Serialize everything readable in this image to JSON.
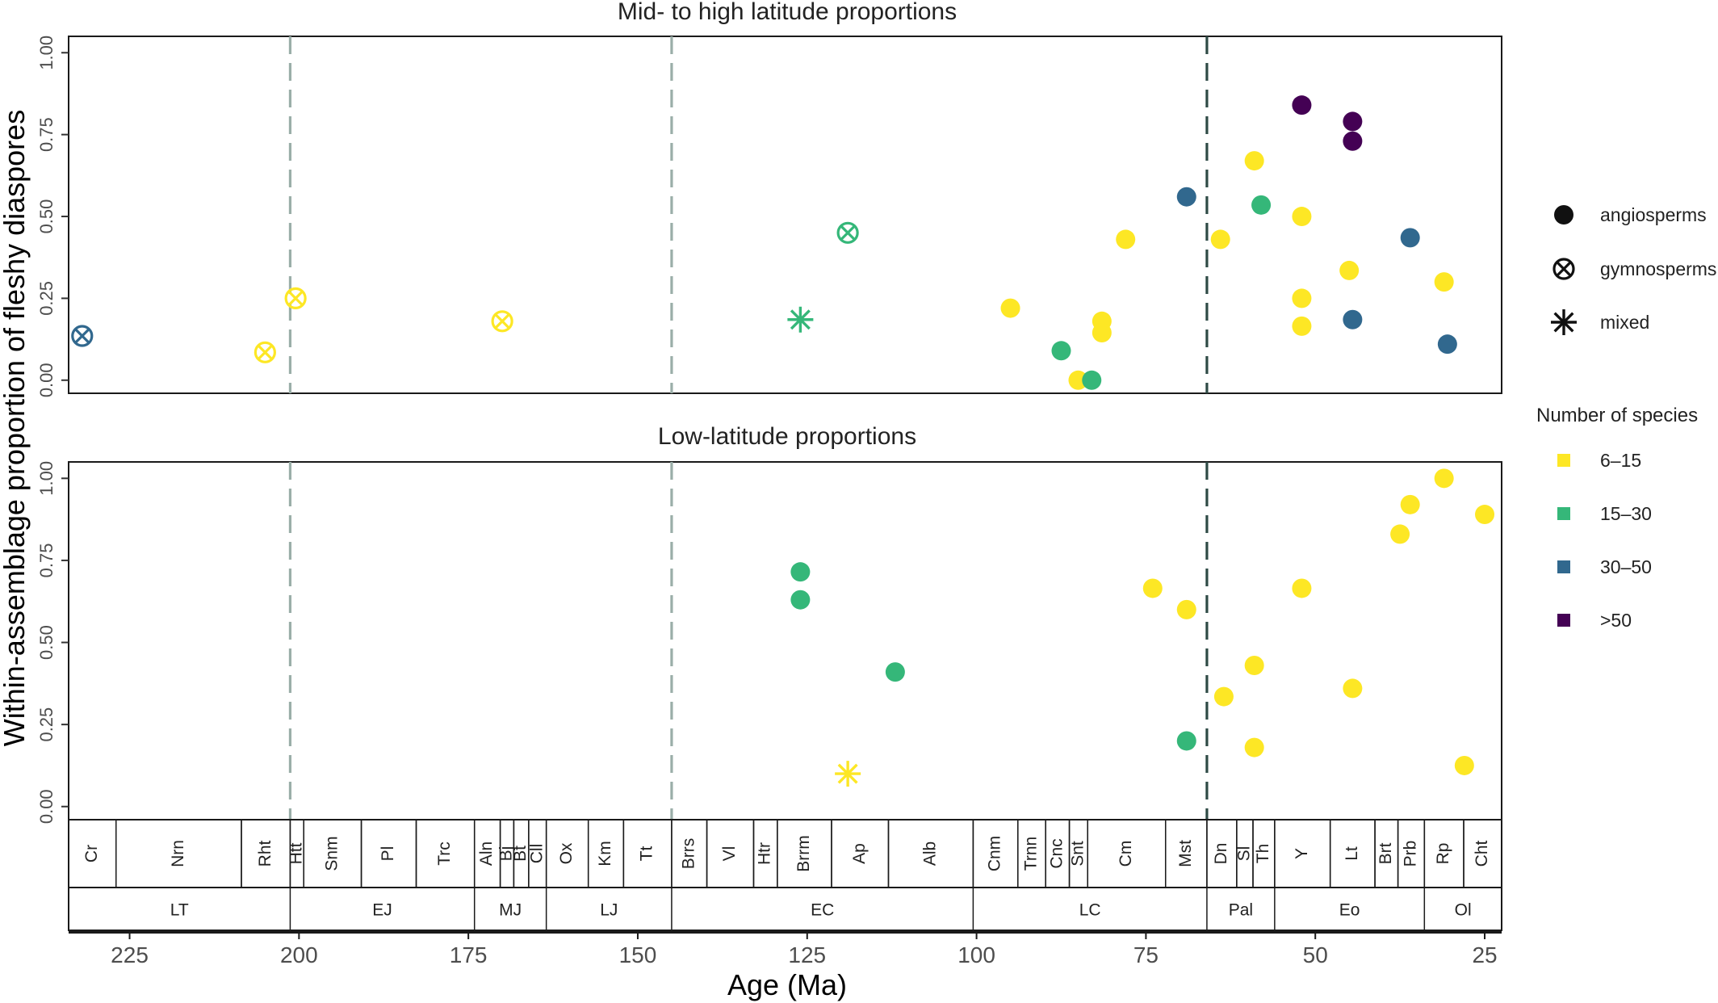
{
  "chart_data": {
    "type": "scatter",
    "xlabel": "Age (Ma)",
    "ylabel": "Within-assemblage proportion of fleshy diaspores",
    "xlim": [
      234,
      22.5
    ],
    "x_reversed": true,
    "x_ticks": [
      225,
      200,
      175,
      150,
      125,
      100,
      75,
      50,
      25
    ],
    "y_ticks": [
      0.0,
      0.25,
      0.5,
      0.75,
      1.0
    ],
    "y_tick_labels": [
      "0.00",
      "0.25",
      "0.50",
      "0.75",
      "1.00"
    ],
    "ylim": [
      -0.04,
      1.05
    ],
    "grid": false,
    "vlines": [
      {
        "x": 201.3,
        "color": "#9aaea8",
        "style": "dashed"
      },
      {
        "x": 145,
        "color": "#9aaea8",
        "style": "dashed"
      },
      {
        "x": 66,
        "color": "#2e4a45",
        "style": "dashed"
      }
    ],
    "species_colors": {
      "6–15": "#fde725",
      "15–30": "#35b779",
      "30–50": "#31688e",
      ">50": "#440154"
    },
    "panels": [
      {
        "title": "Mid- to high latitude proportions",
        "points": [
          {
            "x": 232,
            "y": 0.135,
            "marker": "gymnosperms",
            "species": "30–50"
          },
          {
            "x": 205,
            "y": 0.085,
            "marker": "gymnosperms",
            "species": "6–15"
          },
          {
            "x": 200.5,
            "y": 0.25,
            "marker": "gymnosperms",
            "species": "6–15"
          },
          {
            "x": 170,
            "y": 0.18,
            "marker": "gymnosperms",
            "species": "6–15"
          },
          {
            "x": 119,
            "y": 0.45,
            "marker": "gymnosperms",
            "species": "15–30"
          },
          {
            "x": 126,
            "y": 0.185,
            "marker": "mixed",
            "species": "15–30"
          },
          {
            "x": 95,
            "y": 0.22,
            "marker": "angiosperms",
            "species": "6–15"
          },
          {
            "x": 87.5,
            "y": 0.09,
            "marker": "angiosperms",
            "species": "15–30"
          },
          {
            "x": 85,
            "y": 0.0,
            "marker": "angiosperms",
            "species": "6–15"
          },
          {
            "x": 83,
            "y": 0.0,
            "marker": "angiosperms",
            "species": "15–30"
          },
          {
            "x": 81.5,
            "y": 0.18,
            "marker": "angiosperms",
            "species": "6–15"
          },
          {
            "x": 81.5,
            "y": 0.145,
            "marker": "angiosperms",
            "species": "6–15"
          },
          {
            "x": 78,
            "y": 0.43,
            "marker": "angiosperms",
            "species": "6–15"
          },
          {
            "x": 69,
            "y": 0.56,
            "marker": "angiosperms",
            "species": "30–50"
          },
          {
            "x": 64,
            "y": 0.43,
            "marker": "angiosperms",
            "species": "6–15"
          },
          {
            "x": 58,
            "y": 0.535,
            "marker": "angiosperms",
            "species": "15–30"
          },
          {
            "x": 59,
            "y": 0.67,
            "marker": "angiosperms",
            "species": "6–15"
          },
          {
            "x": 52,
            "y": 0.84,
            "marker": "angiosperms",
            "species": ">50"
          },
          {
            "x": 52,
            "y": 0.5,
            "marker": "angiosperms",
            "species": "6–15"
          },
          {
            "x": 52,
            "y": 0.25,
            "marker": "angiosperms",
            "species": "6–15"
          },
          {
            "x": 52,
            "y": 0.165,
            "marker": "angiosperms",
            "species": "6–15"
          },
          {
            "x": 44.5,
            "y": 0.79,
            "marker": "angiosperms",
            "species": ">50"
          },
          {
            "x": 44.5,
            "y": 0.73,
            "marker": "angiosperms",
            "species": ">50"
          },
          {
            "x": 45,
            "y": 0.335,
            "marker": "angiosperms",
            "species": "6–15"
          },
          {
            "x": 44.5,
            "y": 0.185,
            "marker": "angiosperms",
            "species": "30–50"
          },
          {
            "x": 36,
            "y": 0.435,
            "marker": "angiosperms",
            "species": "30–50"
          },
          {
            "x": 31,
            "y": 0.3,
            "marker": "angiosperms",
            "species": "6–15"
          },
          {
            "x": 30.5,
            "y": 0.11,
            "marker": "angiosperms",
            "species": "30–50"
          }
        ]
      },
      {
        "title": "Low-latitude proportions",
        "points": [
          {
            "x": 126,
            "y": 0.715,
            "marker": "angiosperms",
            "species": "15–30"
          },
          {
            "x": 126,
            "y": 0.63,
            "marker": "angiosperms",
            "species": "15–30"
          },
          {
            "x": 112,
            "y": 0.41,
            "marker": "angiosperms",
            "species": "15–30"
          },
          {
            "x": 119,
            "y": 0.1,
            "marker": "mixed",
            "species": "6–15"
          },
          {
            "x": 74,
            "y": 0.665,
            "marker": "angiosperms",
            "species": "6–15"
          },
          {
            "x": 69,
            "y": 0.6,
            "marker": "angiosperms",
            "species": "6–15"
          },
          {
            "x": 69,
            "y": 0.2,
            "marker": "angiosperms",
            "species": "15–30"
          },
          {
            "x": 63.5,
            "y": 0.335,
            "marker": "angiosperms",
            "species": "6–15"
          },
          {
            "x": 59,
            "y": 0.43,
            "marker": "angiosperms",
            "species": "6–15"
          },
          {
            "x": 59,
            "y": 0.18,
            "marker": "angiosperms",
            "species": "6–15"
          },
          {
            "x": 52,
            "y": 0.665,
            "marker": "angiosperms",
            "species": "6–15"
          },
          {
            "x": 44.5,
            "y": 0.36,
            "marker": "angiosperms",
            "species": "6–15"
          },
          {
            "x": 37.5,
            "y": 0.83,
            "marker": "angiosperms",
            "species": "6–15"
          },
          {
            "x": 36,
            "y": 0.92,
            "marker": "angiosperms",
            "species": "6–15"
          },
          {
            "x": 31,
            "y": 1.0,
            "marker": "angiosperms",
            "species": "6–15"
          },
          {
            "x": 28,
            "y": 0.125,
            "marker": "angiosperms",
            "species": "6–15"
          },
          {
            "x": 25,
            "y": 0.89,
            "marker": "angiosperms",
            "species": "6–15"
          }
        ]
      }
    ],
    "legend": {
      "placement": "right",
      "marker_entries": [
        {
          "label": "angiosperms",
          "marker": "angiosperms"
        },
        {
          "label": "gymnosperms",
          "marker": "gymnosperms"
        },
        {
          "label": "mixed",
          "marker": "mixed"
        }
      ],
      "size_title": "Number of species",
      "color_entries": [
        {
          "label": "6–15",
          "color": "#fde725"
        },
        {
          "label": "15–30",
          "color": "#35b779"
        },
        {
          "label": "30–50",
          "color": "#31688e"
        },
        {
          "label": ">50",
          "color": "#440154"
        }
      ]
    },
    "stages": [
      {
        "name": "Cr",
        "start": 234,
        "end": 227
      },
      {
        "name": "Nrn",
        "start": 227,
        "end": 208.5
      },
      {
        "name": "Rht",
        "start": 208.5,
        "end": 201.3
      },
      {
        "name": "Htt",
        "start": 201.3,
        "end": 199.3
      },
      {
        "name": "Snm",
        "start": 199.3,
        "end": 190.8
      },
      {
        "name": "Pl",
        "start": 190.8,
        "end": 182.7
      },
      {
        "name": "Trc",
        "start": 182.7,
        "end": 174.1
      },
      {
        "name": "Aln",
        "start": 174.1,
        "end": 170.3
      },
      {
        "name": "Bj",
        "start": 170.3,
        "end": 168.3
      },
      {
        "name": "Bt",
        "start": 168.3,
        "end": 166.1
      },
      {
        "name": "Cll",
        "start": 166.1,
        "end": 163.5
      },
      {
        "name": "Ox",
        "start": 163.5,
        "end": 157.3
      },
      {
        "name": "Km",
        "start": 157.3,
        "end": 152.1
      },
      {
        "name": "Tt",
        "start": 152.1,
        "end": 145
      },
      {
        "name": "Brrs",
        "start": 145,
        "end": 139.8
      },
      {
        "name": "Vl",
        "start": 139.8,
        "end": 132.9
      },
      {
        "name": "Htr",
        "start": 132.9,
        "end": 129.4
      },
      {
        "name": "Brrm",
        "start": 129.4,
        "end": 121.4
      },
      {
        "name": "Ap",
        "start": 121.4,
        "end": 113
      },
      {
        "name": "Alb",
        "start": 113,
        "end": 100.5
      },
      {
        "name": "Cnm",
        "start": 100.5,
        "end": 93.9
      },
      {
        "name": "Trnn",
        "start": 93.9,
        "end": 89.8
      },
      {
        "name": "Cnc",
        "start": 89.8,
        "end": 86.3
      },
      {
        "name": "Snt",
        "start": 86.3,
        "end": 83.6
      },
      {
        "name": "Cm",
        "start": 83.6,
        "end": 72.1
      },
      {
        "name": "Mst",
        "start": 72.1,
        "end": 66
      },
      {
        "name": "Dn",
        "start": 66,
        "end": 61.6
      },
      {
        "name": "Sl",
        "start": 61.6,
        "end": 59.2
      },
      {
        "name": "Th",
        "start": 59.2,
        "end": 56
      },
      {
        "name": "Y",
        "start": 56,
        "end": 47.8
      },
      {
        "name": "Lt",
        "start": 47.8,
        "end": 41.2
      },
      {
        "name": "Brt",
        "start": 41.2,
        "end": 37.8
      },
      {
        "name": "Prb",
        "start": 37.8,
        "end": 33.9
      },
      {
        "name": "Rp",
        "start": 33.9,
        "end": 28.1
      },
      {
        "name": "Cht",
        "start": 28.1,
        "end": 22.5
      }
    ],
    "epochs": [
      {
        "name": "LT",
        "start": 234,
        "end": 201.3
      },
      {
        "name": "EJ",
        "start": 201.3,
        "end": 174.1
      },
      {
        "name": "MJ",
        "start": 174.1,
        "end": 163.5
      },
      {
        "name": "LJ",
        "start": 163.5,
        "end": 145
      },
      {
        "name": "EC",
        "start": 145,
        "end": 100.5
      },
      {
        "name": "LC",
        "start": 100.5,
        "end": 66
      },
      {
        "name": "Pal",
        "start": 66,
        "end": 56
      },
      {
        "name": "Eo",
        "start": 56,
        "end": 33.9
      },
      {
        "name": "Ol",
        "start": 33.9,
        "end": 22.5
      }
    ]
  }
}
